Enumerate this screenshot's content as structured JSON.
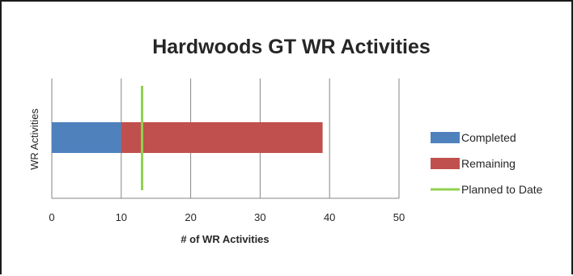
{
  "chart_data": {
    "type": "bar",
    "orientation": "horizontal",
    "stacked": true,
    "title": "Hardwoods GT WR Activities",
    "xlabel": "# of WR Activities",
    "ylabel": "WR Activities",
    "xlim": [
      0,
      50
    ],
    "xticks": [
      "0",
      "10",
      "20",
      "30",
      "40",
      "50"
    ],
    "grid": true,
    "legend_position": "right",
    "series": [
      {
        "name": "Completed",
        "values": [
          10
        ],
        "color": "#4f81bd"
      },
      {
        "name": "Remaining",
        "values": [
          29
        ],
        "color": "#c0504d"
      }
    ],
    "reference_lines": [
      {
        "name": "Planned to Date",
        "value": 13,
        "color": "#92d050"
      }
    ]
  }
}
